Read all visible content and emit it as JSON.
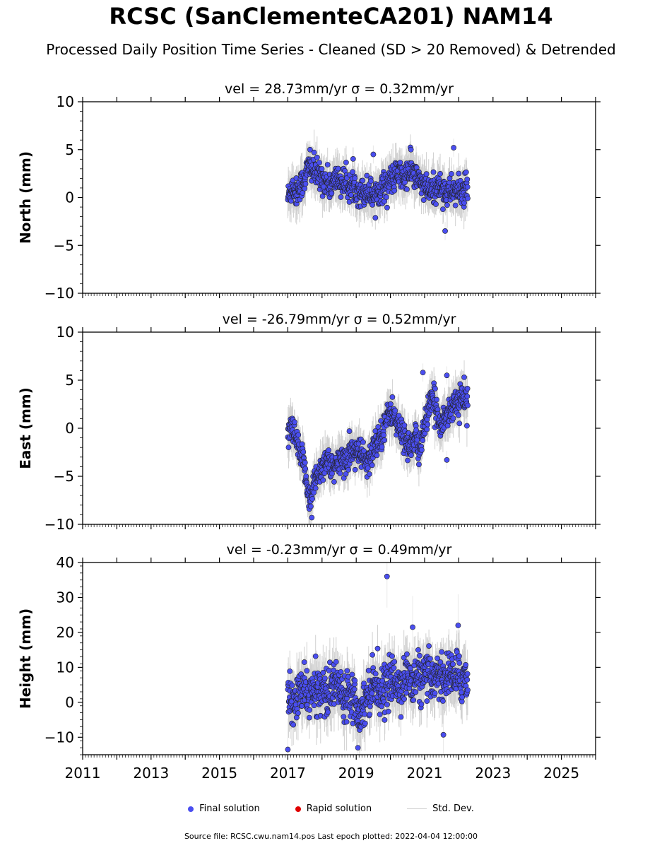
{
  "page": {
    "title": "RCSC (SanClementeCA201) NAM14",
    "subtitle": "Processed Daily Position Time Series - Cleaned (SD > 20 Removed) & Detrended",
    "source_note": "Source file: RCSC.cwu.nam14.pos  Last epoch plotted: 2022-04-04 12:00:00"
  },
  "legend": {
    "final_label": "Final solution",
    "rapid_label": "Rapid solution",
    "std_label": "Std. Dev."
  },
  "colors": {
    "final": "#4a4ef0",
    "rapid": "#e00000",
    "std": "#9a9a9a",
    "marker_edge": "#222222"
  },
  "chart_data": [
    {
      "type": "scatter",
      "panel": "north",
      "title": "vel = 28.73mm/yr   σ = 0.32mm/yr",
      "ylabel": "North (mm)",
      "xlim": [
        2011,
        2026
      ],
      "ylim": [
        -10,
        10
      ],
      "yticks": [
        -10,
        -5,
        0,
        5,
        10
      ],
      "x_range": [
        2017.0,
        2022.26
      ],
      "grid": false,
      "series": [
        {
          "name": "Final solution",
          "x": [
            2017.0,
            2017.08,
            2017.17,
            2017.25,
            2017.33,
            2017.42,
            2017.5,
            2017.58,
            2017.67,
            2017.75,
            2017.83,
            2017.92,
            2018.0,
            2018.08,
            2018.17,
            2018.25,
            2018.33,
            2018.42,
            2018.5,
            2018.58,
            2018.67,
            2018.75,
            2018.83,
            2018.92,
            2019.0,
            2019.08,
            2019.17,
            2019.25,
            2019.33,
            2019.42,
            2019.5,
            2019.58,
            2019.67,
            2019.75,
            2019.83,
            2019.92,
            2020.0,
            2020.08,
            2020.17,
            2020.25,
            2020.33,
            2020.42,
            2020.5,
            2020.58,
            2020.67,
            2020.75,
            2020.83,
            2020.92,
            2021.0,
            2021.08,
            2021.17,
            2021.25,
            2021.33,
            2021.42,
            2021.5,
            2021.58,
            2021.67,
            2021.75,
            2021.83,
            2021.92,
            2022.0,
            2022.08,
            2022.17,
            2022.25
          ],
          "y": [
            0.0,
            0.8,
            1.0,
            0.5,
            1.2,
            1.5,
            2.0,
            3.0,
            3.2,
            2.8,
            2.5,
            2.2,
            2.0,
            1.8,
            1.5,
            1.2,
            1.5,
            2.0,
            1.8,
            1.6,
            1.5,
            1.3,
            1.0,
            1.2,
            1.0,
            0.8,
            0.5,
            0.6,
            0.8,
            0.5,
            0.2,
            0.5,
            0.8,
            1.0,
            1.2,
            1.5,
            1.8,
            2.0,
            2.2,
            2.5,
            2.2,
            2.0,
            2.5,
            2.8,
            2.5,
            2.0,
            1.8,
            1.5,
            1.0,
            0.8,
            0.5,
            0.8,
            1.0,
            1.2,
            1.0,
            0.8,
            0.5,
            0.6,
            0.8,
            0.7,
            0.5,
            0.6,
            0.8,
            0.5
          ]
        }
      ],
      "outliers": [
        {
          "x": 2021.85,
          "y": 5.2
        },
        {
          "x": 2021.6,
          "y": -3.5
        },
        {
          "x": 2019.5,
          "y": 4.5
        },
        {
          "x": 2017.65,
          "y": 5.0
        },
        {
          "x": 2020.6,
          "y": 5.0
        }
      ]
    },
    {
      "type": "scatter",
      "panel": "east",
      "title": "vel = -26.79mm/yr   σ = 0.52mm/yr",
      "ylabel": "East (mm)",
      "xlim": [
        2011,
        2026
      ],
      "ylim": [
        -10,
        10
      ],
      "yticks": [
        -10,
        -5,
        0,
        5,
        10
      ],
      "x_range": [
        2017.0,
        2022.26
      ],
      "grid": false,
      "series": [
        {
          "name": "Final solution",
          "x": [
            2017.0,
            2017.08,
            2017.17,
            2017.25,
            2017.33,
            2017.42,
            2017.5,
            2017.58,
            2017.67,
            2017.75,
            2017.83,
            2017.92,
            2018.0,
            2018.08,
            2018.17,
            2018.25,
            2018.33,
            2018.42,
            2018.5,
            2018.58,
            2018.67,
            2018.75,
            2018.83,
            2018.92,
            2019.0,
            2019.08,
            2019.17,
            2019.25,
            2019.33,
            2019.42,
            2019.5,
            2019.58,
            2019.67,
            2019.75,
            2019.83,
            2019.92,
            2020.0,
            2020.08,
            2020.17,
            2020.25,
            2020.33,
            2020.42,
            2020.5,
            2020.58,
            2020.67,
            2020.75,
            2020.83,
            2020.92,
            2021.0,
            2021.08,
            2021.17,
            2021.25,
            2021.33,
            2021.42,
            2021.5,
            2021.58,
            2021.67,
            2021.75,
            2021.83,
            2021.92,
            2022.0,
            2022.08,
            2022.17,
            2022.25
          ],
          "y": [
            -1.0,
            0.0,
            -0.5,
            -1.5,
            -2.5,
            -3.5,
            -4.0,
            -6.5,
            -7.5,
            -6.0,
            -5.0,
            -4.5,
            -4.0,
            -3.5,
            -3.0,
            -4.0,
            -4.5,
            -4.0,
            -3.5,
            -3.0,
            -3.5,
            -3.0,
            -2.5,
            -2.5,
            -2.0,
            -3.0,
            -2.5,
            -3.5,
            -4.0,
            -3.0,
            -2.0,
            -1.5,
            -1.0,
            -0.5,
            0.5,
            1.0,
            2.0,
            1.5,
            0.5,
            0.0,
            -0.5,
            -1.0,
            -1.5,
            -2.0,
            -1.5,
            -1.0,
            -2.5,
            -1.0,
            0.5,
            1.5,
            2.5,
            3.0,
            2.0,
            1.0,
            0.5,
            1.0,
            1.5,
            2.0,
            2.5,
            3.0,
            2.5,
            3.0,
            3.5,
            3.0
          ]
        }
      ],
      "outliers": [
        {
          "x": 2020.95,
          "y": 5.8
        },
        {
          "x": 2018.8,
          "y": -0.3
        },
        {
          "x": 2021.65,
          "y": -3.3
        },
        {
          "x": 2017.7,
          "y": -9.3
        },
        {
          "x": 2021.65,
          "y": 5.5
        }
      ]
    },
    {
      "type": "scatter",
      "panel": "height",
      "title": "vel = -0.23mm/yr   σ = 0.49mm/yr",
      "ylabel": "Height (mm)",
      "xlim": [
        2011,
        2026
      ],
      "ylim": [
        -15,
        40
      ],
      "yticks": [
        -10,
        0,
        10,
        20,
        30,
        40
      ],
      "x_range": [
        2017.0,
        2022.26
      ],
      "xticks": [
        2011,
        2013,
        2015,
        2017,
        2019,
        2021,
        2023,
        2025
      ],
      "grid": false,
      "series": [
        {
          "name": "Final solution",
          "x": [
            2017.0,
            2017.08,
            2017.17,
            2017.25,
            2017.33,
            2017.42,
            2017.5,
            2017.58,
            2017.67,
            2017.75,
            2017.83,
            2017.92,
            2018.0,
            2018.08,
            2018.17,
            2018.25,
            2018.33,
            2018.42,
            2018.5,
            2018.58,
            2018.67,
            2018.75,
            2018.83,
            2018.92,
            2019.0,
            2019.08,
            2019.17,
            2019.25,
            2019.33,
            2019.42,
            2019.5,
            2019.58,
            2019.67,
            2019.75,
            2019.83,
            2019.92,
            2020.0,
            2020.08,
            2020.17,
            2020.25,
            2020.33,
            2020.42,
            2020.5,
            2020.58,
            2020.67,
            2020.75,
            2020.83,
            2020.92,
            2021.0,
            2021.08,
            2021.17,
            2021.25,
            2021.33,
            2021.42,
            2021.5,
            2021.58,
            2021.67,
            2021.75,
            2021.83,
            2021.92,
            2022.0,
            2022.08,
            2022.17,
            2022.25
          ],
          "y": [
            2.0,
            0.0,
            -1.0,
            1.0,
            2.0,
            3.0,
            4.0,
            2.0,
            3.0,
            2.0,
            3.0,
            4.0,
            5.0,
            3.0,
            2.0,
            3.0,
            5.0,
            6.0,
            4.0,
            3.0,
            2.0,
            3.0,
            4.0,
            2.0,
            0.0,
            -3.0,
            -2.0,
            1.0,
            2.0,
            4.0,
            6.0,
            5.0,
            4.0,
            3.0,
            5.0,
            4.0,
            6.0,
            7.0,
            5.0,
            4.0,
            6.0,
            7.0,
            8.0,
            6.0,
            5.0,
            7.0,
            8.0,
            6.0,
            7.0,
            8.0,
            6.0,
            7.0,
            9.0,
            8.0,
            7.0,
            6.0,
            8.0,
            9.0,
            7.0,
            8.0,
            7.0,
            6.0,
            8.0,
            7.0
          ]
        }
      ],
      "outliers": [
        {
          "x": 2019.9,
          "y": 36
        },
        {
          "x": 2020.65,
          "y": 21.5
        },
        {
          "x": 2021.98,
          "y": 22
        },
        {
          "x": 2017.0,
          "y": -13.5
        },
        {
          "x": 2021.55,
          "y": -9.3
        },
        {
          "x": 2019.05,
          "y": -13.0
        }
      ]
    }
  ]
}
